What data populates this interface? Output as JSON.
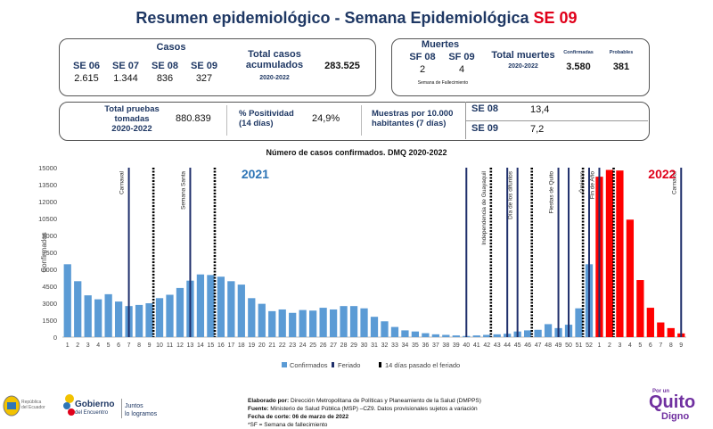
{
  "title": {
    "main": "Resumen epidemiológico - Semana Epidemiológica ",
    "week": "SE 09"
  },
  "casos": {
    "label": "Casos",
    "weeks": [
      {
        "week": "SE 06",
        "value": "2.615"
      },
      {
        "week": "SE 07",
        "value": "1.344"
      },
      {
        "week": "SE 08",
        "value": "836"
      },
      {
        "week": "SE 09",
        "value": "327"
      }
    ],
    "total_label_1": "Total casos",
    "total_label_2": "acumulados",
    "total_period": "2020-2022",
    "total_value": "283.525"
  },
  "muertes": {
    "label": "Muertes",
    "weeks": [
      {
        "week": "SF 08",
        "value": "2"
      },
      {
        "week": "SF 09",
        "value": "4"
      }
    ],
    "note": "Semana de Fallecimiento",
    "total_label": "Total muertes",
    "total_period": "2020-2022",
    "confirmadas_label": "Confirmadas",
    "probables_label": "Probables",
    "confirmadas_value": "3.580",
    "probables_value": "381"
  },
  "pruebas": {
    "label_1": "Total pruebas",
    "label_2": "tomadas",
    "period": "2020-2022",
    "value": "880.839",
    "positividad_label_1": "% Positividad",
    "positividad_label_2": "(14 días)",
    "positividad_value": "24,9%",
    "muestras_label_1": "Muestras por 10.000",
    "muestras_label_2": "habitantes (7 días)",
    "muestras": [
      {
        "week": "SE 08",
        "value": "13,4"
      },
      {
        "week": "SE 09",
        "value": "7,2"
      }
    ]
  },
  "chart_data": {
    "type": "bar",
    "title": "Número de casos confirmados. DMQ 2020-2022",
    "ylabel": "Confirmados",
    "ylim": [
      0,
      15000
    ],
    "yticks": [
      0,
      1500,
      3000,
      4500,
      6000,
      7500,
      9000,
      10500,
      12000,
      13500,
      15000
    ],
    "year_labels": [
      {
        "text": "2021",
        "color": "#2e75b6"
      },
      {
        "text": "2022",
        "color": "#e0001a"
      }
    ],
    "categories": [
      "1",
      "2",
      "3",
      "4",
      "5",
      "6",
      "7",
      "8",
      "9",
      "10",
      "11",
      "12",
      "13",
      "14",
      "15",
      "16",
      "17",
      "18",
      "19",
      "20",
      "21",
      "22",
      "23",
      "24",
      "25",
      "26",
      "27",
      "28",
      "29",
      "30",
      "31",
      "32",
      "33",
      "34",
      "35",
      "36",
      "37",
      "38",
      "39",
      "40",
      "41",
      "42",
      "43",
      "44",
      "45",
      "46",
      "47",
      "48",
      "49",
      "50",
      "51",
      "52",
      "1",
      "2",
      "3",
      "4",
      "5",
      "6",
      "7",
      "8",
      "9"
    ],
    "series": [
      {
        "name": "Confirmados",
        "color_2021": "#5b9bd5",
        "color_2022": "#ff0000",
        "values": [
          6450,
          4950,
          3700,
          3350,
          3800,
          3150,
          2750,
          2850,
          3000,
          3450,
          3750,
          4350,
          5000,
          5550,
          5500,
          5350,
          4950,
          4650,
          3450,
          2950,
          2300,
          2450,
          2150,
          2400,
          2350,
          2600,
          2450,
          2750,
          2750,
          2550,
          1800,
          1400,
          900,
          600,
          500,
          350,
          250,
          200,
          150,
          100,
          150,
          200,
          250,
          300,
          500,
          600,
          650,
          1150,
          800,
          1100,
          2550,
          6450,
          14200,
          14800,
          14750,
          10400,
          5050,
          2600,
          1300,
          800,
          330
        ]
      }
    ],
    "feriado": [
      {
        "week": "7",
        "year": "2021",
        "label": "Carnaval"
      },
      {
        "week": "13",
        "year": "2021",
        "label": "Semana Santa"
      },
      {
        "week": "40",
        "year": "2021",
        "label": ""
      },
      {
        "week": "44",
        "year": "2021",
        "label": ""
      },
      {
        "week": "45",
        "year": "2021",
        "label": "Día de los difuntos"
      },
      {
        "week": "49",
        "year": "2021",
        "label": "Fiestas de Quito"
      },
      {
        "week": "50",
        "year": "2021",
        "label": ""
      },
      {
        "week": "52",
        "year": "2021",
        "label": ""
      },
      {
        "week": "1",
        "year": "2022",
        "label": ""
      },
      {
        "week": "9",
        "year": "2022",
        "label": "Carnaval"
      }
    ],
    "feriado_14": [
      {
        "week": "9",
        "year": "2021",
        "label": ""
      },
      {
        "week": "15",
        "year": "2021",
        "label": ""
      },
      {
        "week": "42",
        "year": "2021",
        "label": "Independencia de Guayaquil"
      },
      {
        "week": "46",
        "year": "2021",
        "label": ""
      },
      {
        "week": "51",
        "year": "2021",
        "label": ""
      },
      {
        "week": "2",
        "year": "2022",
        "label": ""
      }
    ],
    "other_annotations": [
      {
        "week": "52",
        "year": "2021",
        "label": "Ómicron"
      },
      {
        "week": "1",
        "year": "2022",
        "label": "Fin de Año"
      }
    ],
    "legend": [
      "Confirmados",
      "Feriado",
      "14 días pasado el feriado"
    ],
    "legend_position": "bottom"
  },
  "footer": {
    "elaborado_label": "Elaborado por:",
    "elaborado": " Dirección Metropolitana de Políticas y Planeamiento de la Salud (DMPPS)",
    "fuente_label": "Fuente:",
    "fuente": " Ministerio de Salud Pública (MSP) –CZ9. Datos provisionales sujetos a variación",
    "fecha_label": "Fecha de corte: 06 de marzo de 2022",
    "sf_note": "*SF = Semana de fallecimiento"
  },
  "logos": {
    "republica_1": "República",
    "republica_2": "del Ecuador",
    "gobierno": "Gobierno",
    "gobierno_sub": "del Encuentro",
    "juntos_1": "Juntos",
    "juntos_2": "lo logramos",
    "quito_top": "Por un",
    "quito": "Quito",
    "quito_sub": "Digno"
  }
}
